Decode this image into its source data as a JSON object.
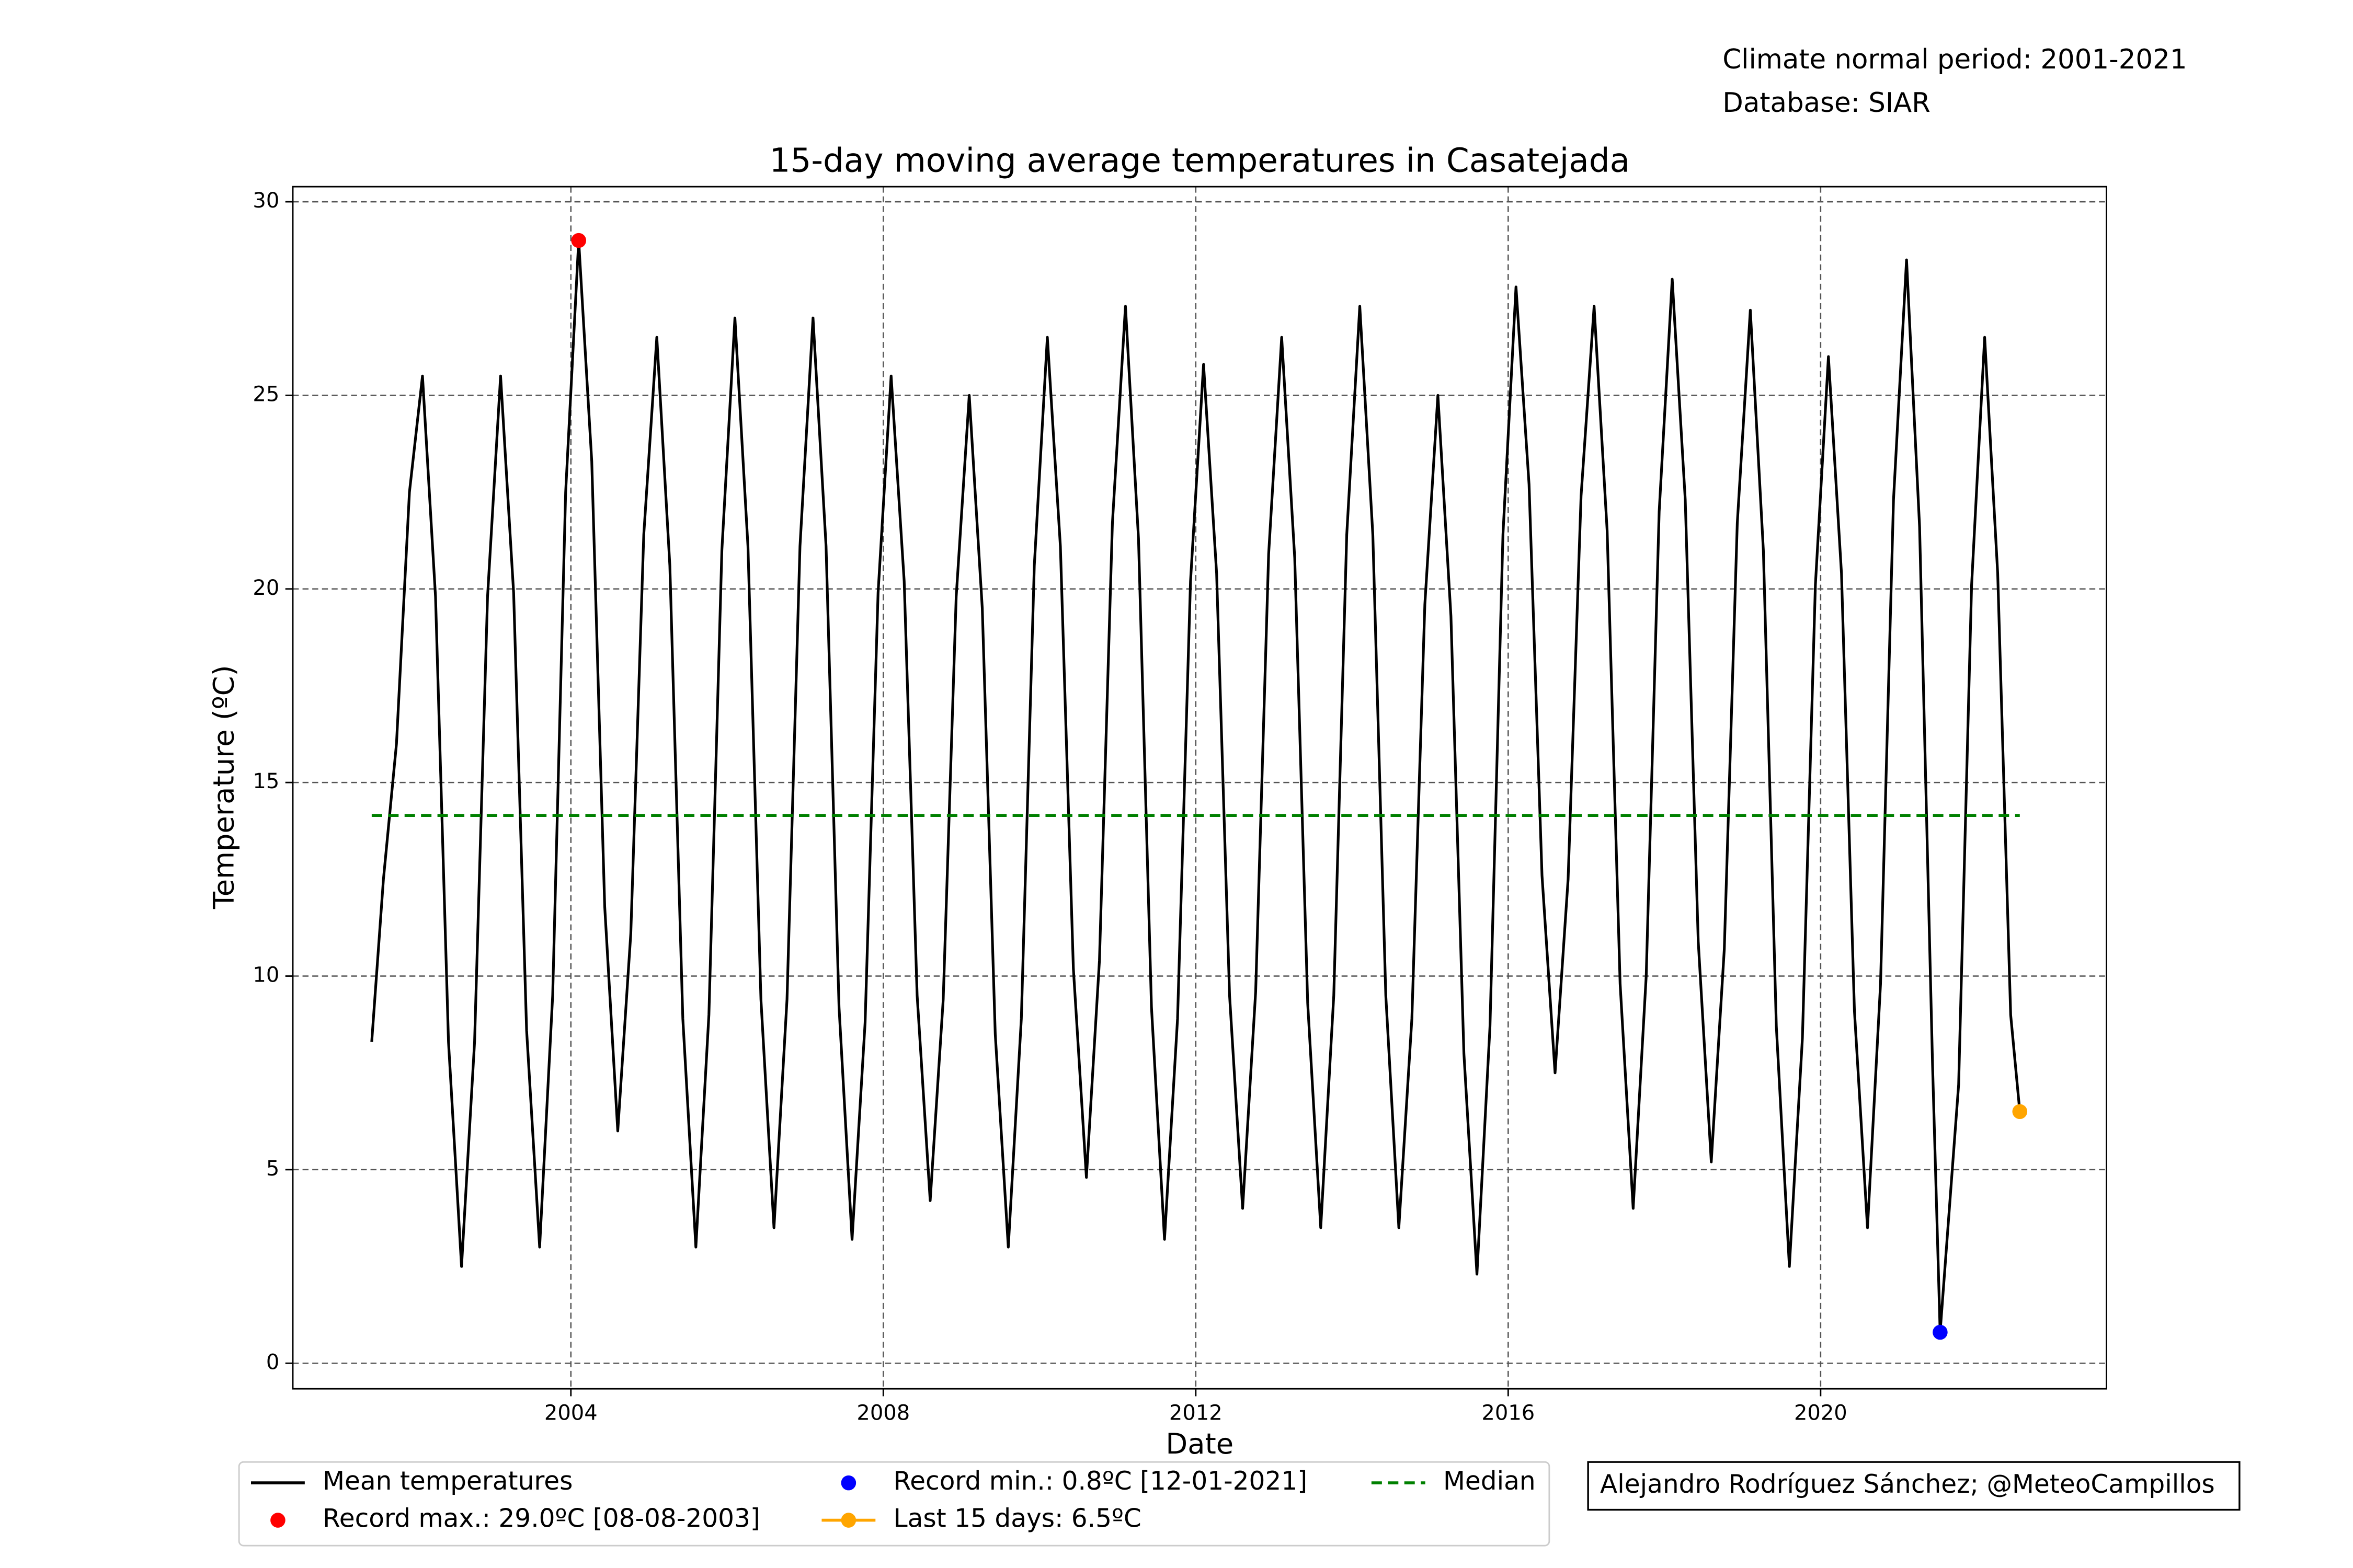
{
  "chart_data": {
    "type": "line",
    "title": "15-day moving average temperatures in Casatejada",
    "notes": [
      "Climate normal period: 2001-2021",
      "Database: SIAR"
    ],
    "credit": "Alejandro Rodríguez Sánchez; @MeteoCampillos",
    "x_label": "Date",
    "y_label": "Temperature (ºC)",
    "xlim": [
      2000.44,
      2023.66
    ],
    "ylim": [
      -0.66,
      30.39
    ],
    "xticks": [
      2004,
      2008,
      2012,
      2016,
      2020
    ],
    "yticks": [
      0,
      5,
      10,
      15,
      20,
      25,
      30
    ],
    "grid": true,
    "legend": "below",
    "series": [
      {
        "name": "Mean temperatures",
        "color": "#000000",
        "style": "line",
        "x": [
          2001.45,
          2001.6,
          2001.767,
          2001.933,
          2002.1,
          2002.267,
          2002.433,
          2002.6,
          2002.767,
          2002.933,
          2003.1,
          2003.267,
          2003.433,
          2003.6,
          2003.767,
          2003.933,
          2004.1,
          2004.267,
          2004.433,
          2004.6,
          2004.767,
          2004.933,
          2005.1,
          2005.267,
          2005.433,
          2005.6,
          2005.767,
          2005.933,
          2006.1,
          2006.267,
          2006.433,
          2006.6,
          2006.767,
          2006.933,
          2007.1,
          2007.267,
          2007.433,
          2007.6,
          2007.767,
          2007.933,
          2008.1,
          2008.267,
          2008.433,
          2008.6,
          2008.767,
          2008.933,
          2009.1,
          2009.267,
          2009.433,
          2009.6,
          2009.767,
          2009.933,
          2010.1,
          2010.267,
          2010.433,
          2010.6,
          2010.767,
          2010.933,
          2011.1,
          2011.267,
          2011.433,
          2011.6,
          2011.767,
          2011.933,
          2012.1,
          2012.267,
          2012.433,
          2012.6,
          2012.767,
          2012.933,
          2013.1,
          2013.267,
          2013.433,
          2013.6,
          2013.767,
          2013.933,
          2014.1,
          2014.267,
          2014.433,
          2014.6,
          2014.767,
          2014.933,
          2015.1,
          2015.267,
          2015.433,
          2015.6,
          2015.767,
          2015.933,
          2016.1,
          2016.267,
          2016.433,
          2016.6,
          2016.767,
          2016.933,
          2017.1,
          2017.267,
          2017.433,
          2017.6,
          2017.767,
          2017.933,
          2018.1,
          2018.267,
          2018.433,
          2018.6,
          2018.767,
          2018.933,
          2019.1,
          2019.267,
          2019.433,
          2019.6,
          2019.767,
          2019.933,
          2020.1,
          2020.267,
          2020.433,
          2020.6,
          2020.767,
          2020.933,
          2021.1,
          2021.267,
          2021.433,
          2021.53,
          2021.767,
          2021.933,
          2022.1,
          2022.267,
          2022.433,
          2022.55
        ],
        "values": [
          8.3,
          12.5,
          16,
          22.5,
          25.5,
          19.8,
          8.3,
          2.5,
          8.3,
          19.8,
          25.5,
          19.9,
          8.6,
          3,
          9.5,
          22.5,
          29,
          23.3,
          11.8,
          6,
          11.1,
          21.4,
          26.5,
          20.6,
          8.9,
          3,
          9,
          21,
          27,
          21.1,
          9.4,
          3.5,
          9.4,
          21.1,
          27,
          21.1,
          9.2,
          3.2,
          8.8,
          19.9,
          25.5,
          20.2,
          9.5,
          4.2,
          9.4,
          19.8,
          25,
          19.5,
          8.5,
          3,
          8.9,
          20.6,
          26.5,
          21.1,
          10.2,
          4.8,
          10.4,
          21.7,
          27.3,
          21.3,
          9.2,
          3.2,
          8.9,
          20.2,
          25.8,
          20.4,
          9.5,
          4,
          9.6,
          20.9,
          26.5,
          20.8,
          9.3,
          3.5,
          9.5,
          21.4,
          27.3,
          21.4,
          9.5,
          3.5,
          8.9,
          19.6,
          25,
          19.3,
          8,
          2.3,
          8.7,
          21.4,
          27.8,
          22.7,
          12.6,
          7.5,
          12.5,
          22.4,
          27.3,
          21.5,
          9.8,
          4,
          10,
          22,
          28,
          22.3,
          10.9,
          5.2,
          10.7,
          21.7,
          27.2,
          21,
          8.7,
          2.5,
          8.4,
          20.1,
          26,
          20.4,
          9.1,
          3.5,
          9.8,
          22.3,
          28.5,
          21.6,
          7.7,
          0.8,
          7.2,
          20.1,
          26.5,
          20.4,
          9,
          6.5
        ]
      },
      {
        "name": "Record max.: 29.0ºC [08-08-2003]",
        "color": "#ff0000",
        "style": "marker",
        "x": [
          2004.1
        ],
        "values": [
          29.0
        ]
      },
      {
        "name": "Record min.: 0.8ºC [12-01-2021]",
        "color": "#0000ff",
        "style": "marker",
        "x": [
          2021.53
        ],
        "values": [
          0.8
        ]
      },
      {
        "name": "Last 15 days: 6.5ºC",
        "color": "#ffa500",
        "style": "line+marker",
        "x": [
          2022.55
        ],
        "values": [
          6.5
        ]
      },
      {
        "name": "Median",
        "color": "#008000",
        "style": "dashed",
        "x": [
          2001.45,
          2022.55
        ],
        "values": [
          14.15,
          14.15
        ]
      }
    ]
  }
}
